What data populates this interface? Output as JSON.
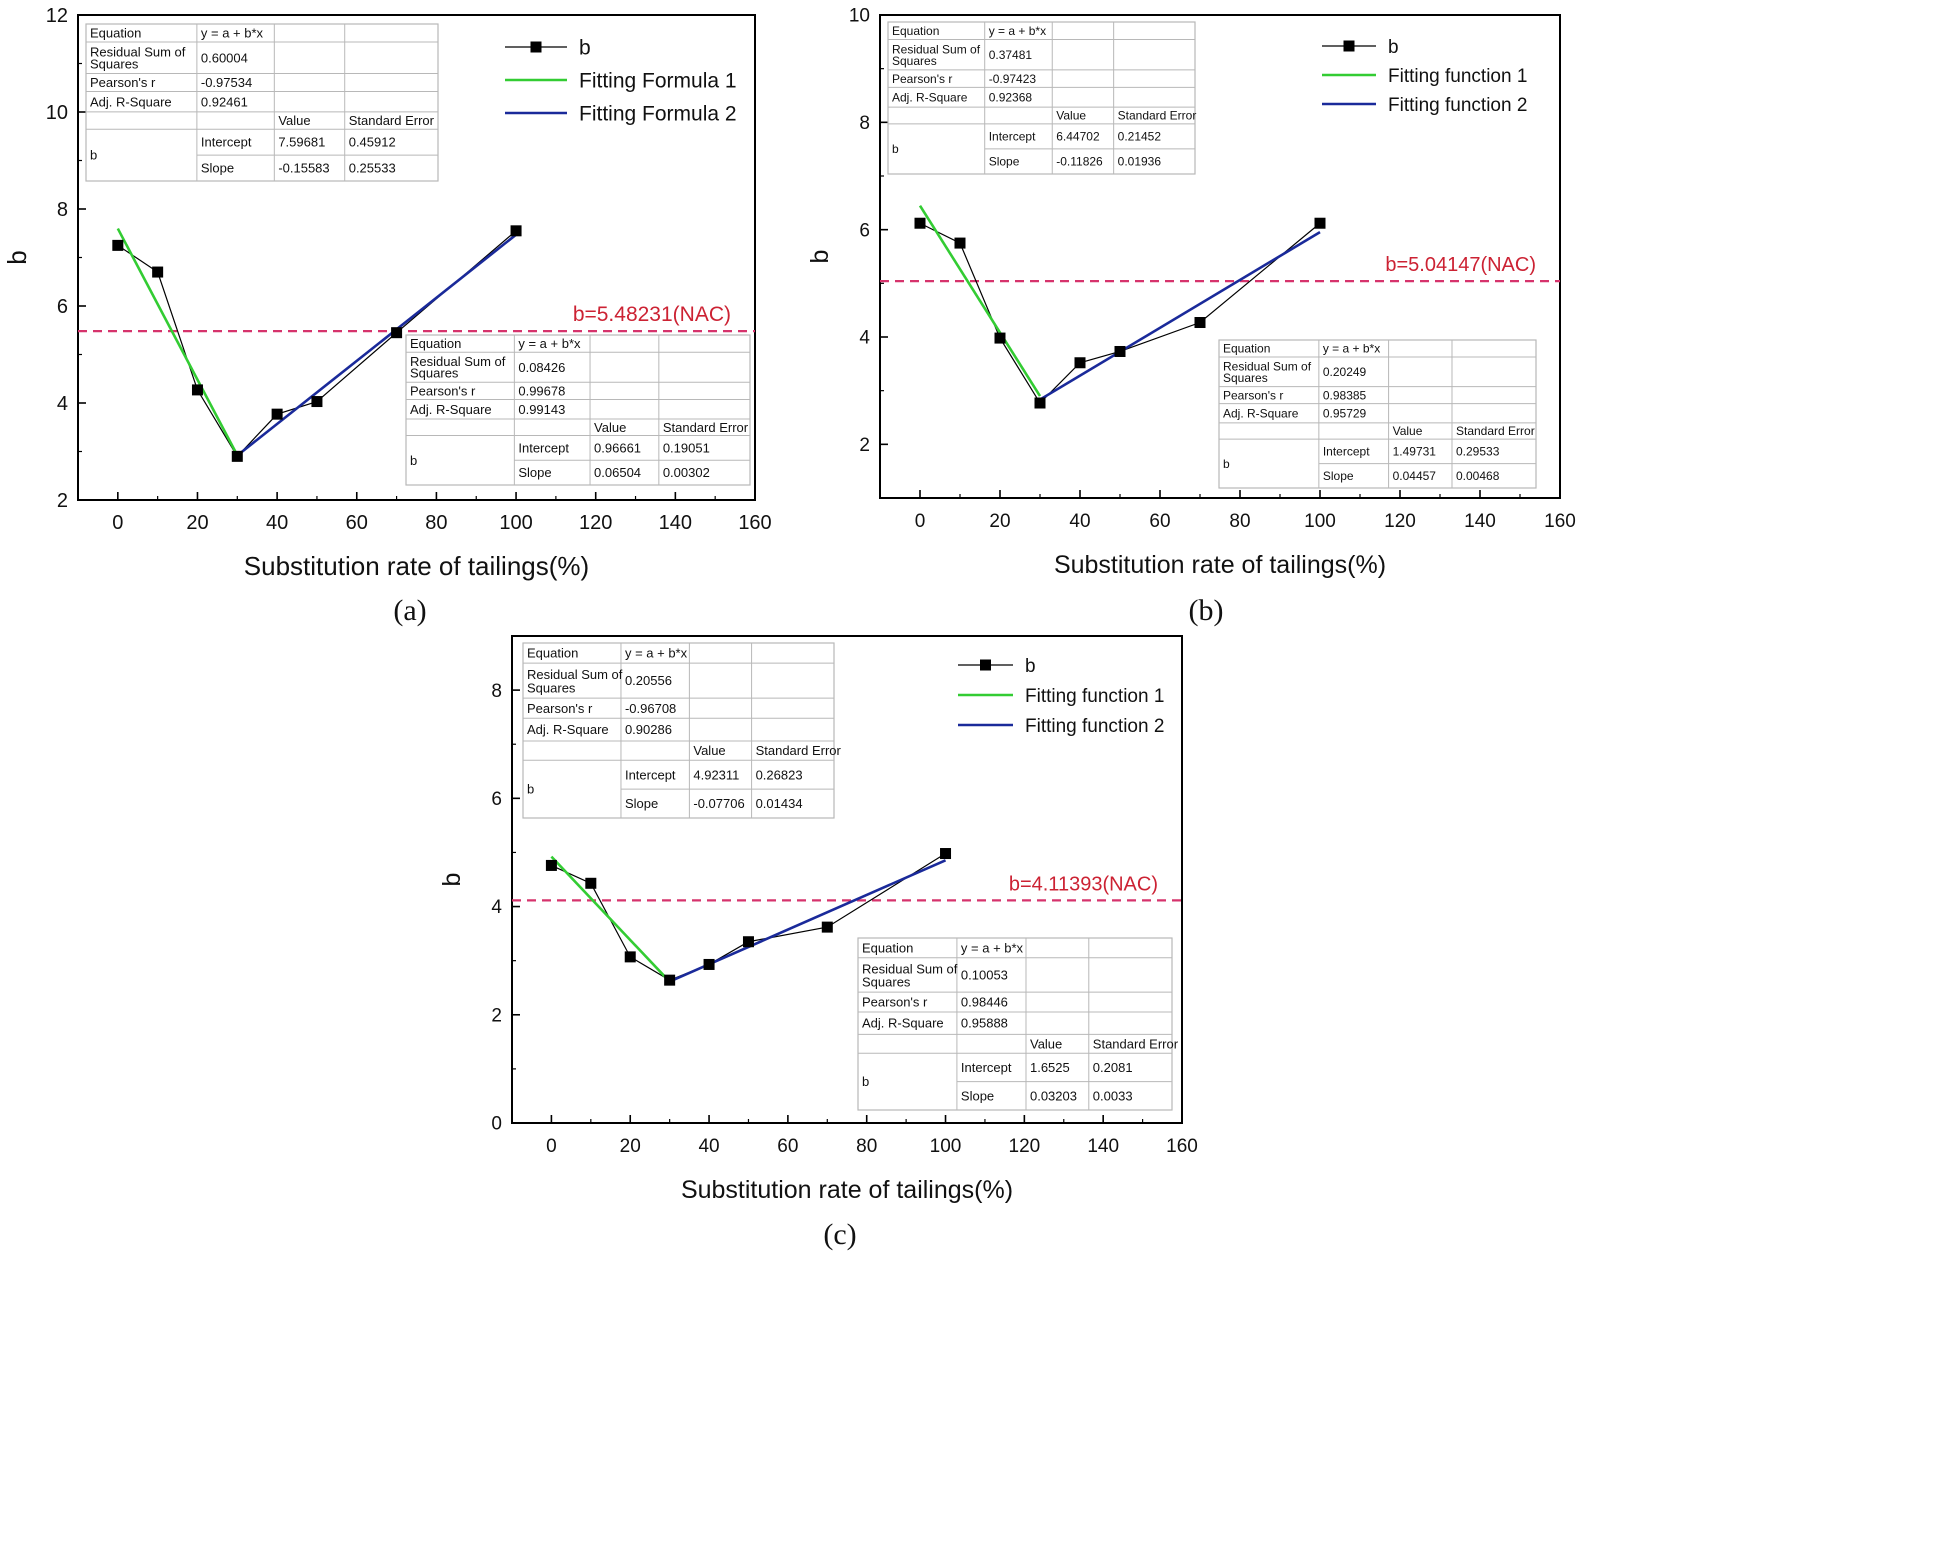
{
  "colors": {
    "data_series": "#000000",
    "fit_1": "#33cc33",
    "fit_2": "#1a2a9a",
    "nac_line": "#d6336c",
    "nac_text": "#cc2233",
    "table_border": "#b8b8b8",
    "frame": "#000000"
  },
  "chart_data": [
    {
      "id": "a",
      "type": "line",
      "caption": "(a)",
      "xlabel": "Substitution rate of tailings(%)",
      "ylabel": "b",
      "xlim": [
        -10,
        160
      ],
      "ylim": [
        2,
        12
      ],
      "xticks": [
        0,
        20,
        40,
        60,
        80,
        100,
        120,
        140,
        160
      ],
      "yticks": [
        2,
        4,
        6,
        8,
        10,
        12
      ],
      "legend": {
        "position": "top-right",
        "entries": [
          {
            "label": "b",
            "kind": "marker-line"
          },
          {
            "label": "Fitting Formula 1",
            "kind": "fit1"
          },
          {
            "label": "Fitting Formula 2",
            "kind": "fit2"
          }
        ]
      },
      "series": [
        {
          "name": "b",
          "x": [
            0,
            10,
            20,
            30,
            40,
            50,
            70,
            100
          ],
          "values": [
            7.25,
            6.7,
            4.27,
            2.9,
            3.77,
            4.03,
            5.45,
            7.55
          ]
        }
      ],
      "fits": [
        {
          "name": "Fitting Formula 1",
          "intercept": 7.59681,
          "slope": -0.15583,
          "x_range": [
            0,
            30
          ]
        },
        {
          "name": "Fitting Formula 2",
          "intercept": 0.96661,
          "slope": 0.06504,
          "x_range": [
            30,
            100
          ]
        }
      ],
      "reference_line": {
        "value": 5.48231,
        "label": "b=5.48231(NAC)"
      },
      "stat_tables": [
        {
          "position": "top-left",
          "equation_label": "Equation",
          "equation": "y = a + b*x",
          "rss_label": "Residual Sum of Squares",
          "rss": "0.60004",
          "pearson_label": "Pearson's r",
          "pearson": "-0.97534",
          "adjr2_label": "Adj. R-Square",
          "adjr2": "0.92461",
          "value_header": "Value",
          "se_header": "Standard Error",
          "param_group": "b",
          "intercept_label": "Intercept",
          "intercept": "7.59681",
          "intercept_se": "0.45912",
          "slope_label": "Slope",
          "slope": "-0.15583",
          "slope_se": "0.25533"
        },
        {
          "position": "bottom-right",
          "equation_label": "Equation",
          "equation": "y = a + b*x",
          "rss_label": "Residual Sum of Squares",
          "rss": "0.08426",
          "pearson_label": "Pearson's r",
          "pearson": "0.99678",
          "adjr2_label": "Adj. R-Square",
          "adjr2": "0.99143",
          "value_header": "Value",
          "se_header": "Standard Error",
          "param_group": "b",
          "intercept_label": "Intercept",
          "intercept": "0.96661",
          "intercept_se": "0.19051",
          "slope_label": "Slope",
          "slope": "0.06504",
          "slope_se": "0.00302"
        }
      ]
    },
    {
      "id": "b",
      "type": "line",
      "caption": "(b)",
      "xlabel": "Substitution rate of tailings(%)",
      "ylabel": "b",
      "xlim": [
        -10,
        160
      ],
      "ylim": [
        1,
        10
      ],
      "xticks": [
        0,
        20,
        40,
        60,
        80,
        100,
        120,
        140,
        160
      ],
      "yticks": [
        2,
        4,
        6,
        8,
        10
      ],
      "legend": {
        "position": "top-right",
        "entries": [
          {
            "label": "b",
            "kind": "marker-line"
          },
          {
            "label": "Fitting function 1",
            "kind": "fit1"
          },
          {
            "label": "Fitting function 2",
            "kind": "fit2"
          }
        ]
      },
      "series": [
        {
          "name": "b",
          "x": [
            0,
            10,
            20,
            30,
            40,
            50,
            70,
            100
          ],
          "values": [
            6.12,
            5.75,
            3.98,
            2.77,
            3.52,
            3.73,
            4.27,
            6.12
          ]
        }
      ],
      "fits": [
        {
          "name": "Fitting function 1",
          "intercept": 6.44702,
          "slope": -0.11826,
          "x_range": [
            0,
            30
          ]
        },
        {
          "name": "Fitting function 2",
          "intercept": 1.49731,
          "slope": 0.04457,
          "x_range": [
            30,
            100
          ]
        }
      ],
      "reference_line": {
        "value": 5.04147,
        "label": "b=5.04147(NAC)"
      },
      "stat_tables": [
        {
          "position": "top-left",
          "equation_label": "Equation",
          "equation": "y = a + b*x",
          "rss_label": "Residual Sum of Squares",
          "rss": "0.37481",
          "pearson_label": "Pearson's r",
          "pearson": "-0.97423",
          "adjr2_label": "Adj. R-Square",
          "adjr2": "0.92368",
          "value_header": "Value",
          "se_header": "Standard Error",
          "param_group": "b",
          "intercept_label": "Intercept",
          "intercept": "6.44702",
          "intercept_se": "0.21452",
          "slope_label": "Slope",
          "slope": "-0.11826",
          "slope_se": "0.01936"
        },
        {
          "position": "bottom-right",
          "equation_label": "Equation",
          "equation": "y = a + b*x",
          "rss_label": "Residual Sum of Squares",
          "rss": "0.20249",
          "pearson_label": "Pearson's r",
          "pearson": "0.98385",
          "adjr2_label": "Adj. R-Square",
          "adjr2": "0.95729",
          "value_header": "Value",
          "se_header": "Standard Error",
          "param_group": "b",
          "intercept_label": "Intercept",
          "intercept": "1.49731",
          "intercept_se": "0.29533",
          "slope_label": "Slope",
          "slope": "0.04457",
          "slope_se": "0.00468"
        }
      ]
    },
    {
      "id": "c",
      "type": "line",
      "caption": "(c)",
      "xlabel": "Substitution rate of tailings(%)",
      "ylabel": "b",
      "xlim": [
        -10,
        160
      ],
      "ylim": [
        0,
        9
      ],
      "xticks": [
        0,
        20,
        40,
        60,
        80,
        100,
        120,
        140,
        160
      ],
      "yticks": [
        0,
        2,
        4,
        6,
        8
      ],
      "legend": {
        "position": "top-right",
        "entries": [
          {
            "label": "b",
            "kind": "marker-line"
          },
          {
            "label": "Fitting function 1",
            "kind": "fit1"
          },
          {
            "label": "Fitting function 2",
            "kind": "fit2"
          }
        ]
      },
      "series": [
        {
          "name": "b",
          "x": [
            0,
            10,
            20,
            30,
            40,
            50,
            70,
            100
          ],
          "values": [
            4.76,
            4.43,
            3.07,
            2.64,
            2.93,
            3.35,
            3.62,
            4.98
          ]
        }
      ],
      "fits": [
        {
          "name": "Fitting function 1",
          "intercept": 4.92311,
          "slope": -0.07706,
          "x_range": [
            0,
            30
          ]
        },
        {
          "name": "Fitting function 2",
          "intercept": 1.6525,
          "slope": 0.03203,
          "x_range": [
            30,
            100
          ]
        }
      ],
      "reference_line": {
        "value": 4.11393,
        "label": "b=4.11393(NAC)"
      },
      "stat_tables": [
        {
          "position": "top-left",
          "equation_label": "Equation",
          "equation": "y = a + b*x",
          "rss_label": "Residual Sum of Squares",
          "rss": "0.20556",
          "pearson_label": "Pearson's r",
          "pearson": "-0.96708",
          "adjr2_label": "Adj. R-Square",
          "adjr2": "0.90286",
          "value_header": "Value",
          "se_header": "Standard Error",
          "param_group": "b",
          "intercept_label": "Intercept",
          "intercept": "4.92311",
          "intercept_se": "0.26823",
          "slope_label": "Slope",
          "slope": "-0.07706",
          "slope_se": "0.01434"
        },
        {
          "position": "bottom-right",
          "equation_label": "Equation",
          "equation": "y = a + b*x",
          "rss_label": "Residual Sum of Squares",
          "rss": "0.10053",
          "pearson_label": "Pearson's r",
          "pearson": "0.98446",
          "adjr2_label": "Adj. R-Square",
          "adjr2": "0.95888",
          "value_header": "Value",
          "se_header": "Standard Error",
          "param_group": "b",
          "intercept_label": "Intercept",
          "intercept": "1.6525",
          "intercept_se": "0.2081",
          "slope_label": "Slope",
          "slope": "0.03203",
          "slope_se": "0.0033"
        }
      ]
    }
  ]
}
